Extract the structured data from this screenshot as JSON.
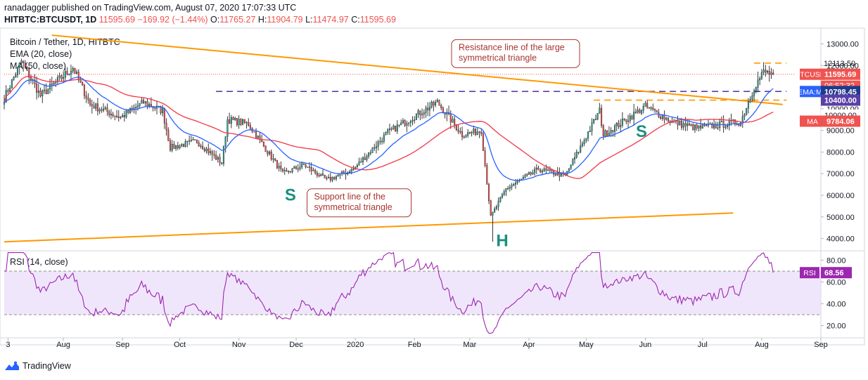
{
  "header": {
    "published_by": "ranadagger published on TradingView.com, August 07, 2020 17:07:33 UTC"
  },
  "ohlc": {
    "symbol": "HITBTC:BTCUSDT, 1D",
    "last": "11595.69",
    "change": "−169.92 (−1.44%)",
    "open_label": "O:",
    "open": "11765.27",
    "high_label": "H:",
    "high": "11904.79",
    "low_label": "L:",
    "low": "11474.97",
    "close_label": "C:",
    "close": "11595.69"
  },
  "legends": {
    "title": "Bitcoin / Tether, 1D, HITBTC",
    "ema": "EMA (20, close)",
    "ma": "MA (50, close)",
    "rsi": "RSI (14, close)"
  },
  "footer": {
    "brand": "TradingView"
  },
  "colors": {
    "up": "#26a69a",
    "down": "#ef5350",
    "candle": "#222222",
    "ema": "#2962ff",
    "ma": "#f23645",
    "trendline": "#ff9800",
    "level_dash": "#5a3fa8",
    "rsi": "#9c27b0",
    "rsi_band": "#e9dcfa",
    "annotation_border": "#a8362e",
    "pattern_label": "#1b8f7f",
    "axis_text": "#131722"
  },
  "chart_data": [
    {
      "type": "candlestick",
      "title": "Bitcoin / Tether, 1D, HITBTC",
      "ylim": [
        3500,
        13600
      ],
      "y_ticks": [
        4000,
        5000,
        6000,
        7000,
        8000,
        9000,
        10000,
        11000,
        12000,
        13000
      ],
      "y_tick_labels": [
        "4000.00",
        "5000.00",
        "6000.00",
        "7000.00",
        "8000.00",
        "9000.00",
        "10000.00",
        "11000.00",
        "12000.00",
        "13000.00"
      ],
      "x_ticks": [
        "3",
        "Aug",
        "Sep",
        "Oct",
        "Nov",
        "Dec",
        "2020",
        "Feb",
        "Mar",
        "Apr",
        "May",
        "Jun",
        "Jul",
        "Aug",
        "Sep"
      ],
      "x_tick_dates": [
        "2019-07-03",
        "2019-08-01",
        "2019-09-01",
        "2019-10-01",
        "2019-11-01",
        "2019-12-01",
        "2020-01-01",
        "2020-02-01",
        "2020-03-01",
        "2020-04-01",
        "2020-05-01",
        "2020-06-01",
        "2020-07-01",
        "2020-08-01",
        "2020-09-01"
      ],
      "x_range": [
        "2019-07-01",
        "2020-09-01"
      ],
      "close_anchors": [
        [
          "2019-07-01",
          10500
        ],
        [
          "2019-07-10",
          12200
        ],
        [
          "2019-07-20",
          10600
        ],
        [
          "2019-08-06",
          11900
        ],
        [
          "2019-08-15",
          10200
        ],
        [
          "2019-08-31",
          9600
        ],
        [
          "2019-09-12",
          10300
        ],
        [
          "2019-09-22",
          9900
        ],
        [
          "2019-09-26",
          8200
        ],
        [
          "2019-10-10",
          8500
        ],
        [
          "2019-10-23",
          7500
        ],
        [
          "2019-10-26",
          9500
        ],
        [
          "2019-11-06",
          9300
        ],
        [
          "2019-11-24",
          7000
        ],
        [
          "2019-12-05",
          7400
        ],
        [
          "2019-12-17",
          6700
        ],
        [
          "2019-12-31",
          7200
        ],
        [
          "2020-01-18",
          8900
        ],
        [
          "2020-02-13",
          10300
        ],
        [
          "2020-02-26",
          8800
        ],
        [
          "2020-03-07",
          9000
        ],
        [
          "2020-03-12",
          5000
        ],
        [
          "2020-03-20",
          6300
        ],
        [
          "2020-04-06",
          7200
        ],
        [
          "2020-04-20",
          6900
        ],
        [
          "2020-05-08",
          9900
        ],
        [
          "2020-05-10",
          8800
        ],
        [
          "2020-06-01",
          10100
        ],
        [
          "2020-06-15",
          9400
        ],
        [
          "2020-06-28",
          9100
        ],
        [
          "2020-07-21",
          9400
        ],
        [
          "2020-07-28",
          11000
        ],
        [
          "2020-08-02",
          11700
        ],
        [
          "2020-08-07",
          11595.69
        ]
      ],
      "price_labels": [
        {
          "text": "12113.50",
          "value": 12113.5,
          "style": "plain"
        },
        {
          "text": "BTCUSDT",
          "value": 11595.69,
          "price": "11595.69",
          "countdown": "06:52:32",
          "style": "red"
        },
        {
          "text": "EMA:MA",
          "value": 10798.45,
          "price": "10798.45",
          "style": "blue"
        },
        {
          "text": "10400.00",
          "value": 10400,
          "style": "purple"
        },
        {
          "text": "10000.00",
          "value": 10000,
          "style": "plain"
        },
        {
          "text": "MA",
          "value": 9784.06,
          "price": "9784.06",
          "style": "red"
        }
      ],
      "levels": [
        {
          "value": 12113.5,
          "from": "2020-07-28",
          "to": "2020-08-14",
          "style": "orange-dash"
        },
        {
          "value": 10800,
          "from": "2019-10-20",
          "to": "2020-08-14",
          "style": "purple-dash"
        },
        {
          "value": 10400,
          "from": "2020-05-05",
          "to": "2020-08-14",
          "style": "orange-dash"
        }
      ],
      "trendlines": [
        {
          "name": "Resistance line of the large symmetrical triangle",
          "from": [
            "2019-07-26",
            13400
          ],
          "to": [
            "2020-08-12",
            10200
          ]
        },
        {
          "name": "Support line of the symmetrical triangle",
          "from": [
            "2019-07-01",
            3850
          ],
          "to": [
            "2020-07-17",
            5180
          ]
        }
      ],
      "annotations": [
        {
          "text": [
            "Resistance line of the large",
            "symmetrical triangle"
          ],
          "anchor": [
            "2020-03-25",
            12550
          ]
        },
        {
          "text": [
            "Support line of the",
            "symmetrical triangle"
          ],
          "anchor": [
            "2020-01-03",
            5650
          ]
        }
      ],
      "pattern_labels": [
        {
          "text": "S",
          "anchor": [
            "2019-11-28",
            5750
          ]
        },
        {
          "text": "H",
          "anchor": [
            "2020-03-18",
            3650
          ]
        },
        {
          "text": "S",
          "anchor": [
            "2020-05-30",
            8700
          ]
        }
      ]
    },
    {
      "type": "line",
      "title": "RSI (14, close)",
      "ylim": [
        12,
        88
      ],
      "y_ticks": [
        20,
        40,
        60,
        80
      ],
      "y_tick_labels": [
        "20.00",
        "40.00",
        "60.00",
        "80.00"
      ],
      "bands": [
        30,
        70
      ],
      "last_label": {
        "text": "RSI",
        "value": 68.56,
        "price": "68.56"
      }
    }
  ]
}
